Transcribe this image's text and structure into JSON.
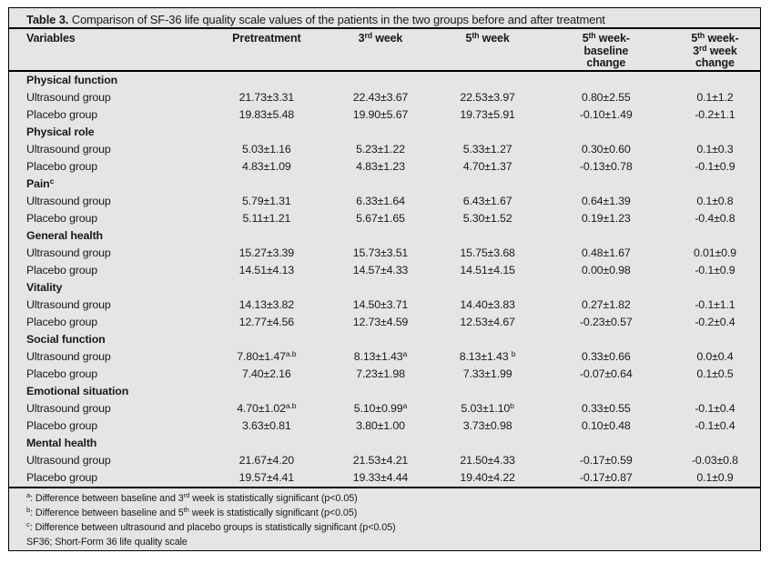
{
  "colors": {
    "page_background": "#ffffff",
    "table_background": "#e5e5e5",
    "rule_and_border": "#000000",
    "text": "#1a1a1a"
  },
  "title": {
    "label": "Table 3.",
    "caption": " Comparison of SF-36 life quality scale values of the patients in the two groups before and after treatment"
  },
  "table": {
    "headers": [
      {
        "lines": [
          "Variables"
        ],
        "align": "left"
      },
      {
        "lines": [
          "Pretreatment"
        ]
      },
      {
        "lines": [
          "3^{rd} week"
        ]
      },
      {
        "lines": [
          "5^{th} week"
        ]
      },
      {
        "lines": [
          "5^{th} week-",
          "baseline",
          "change"
        ]
      },
      {
        "lines": [
          "5^{th} week-",
          "3^{rd} week",
          "change"
        ]
      }
    ],
    "rows": [
      {
        "type": "section",
        "label": "Physical function"
      },
      {
        "type": "data",
        "label": "Ultrasound group",
        "values": [
          "21.73±3.31",
          "22.43±3.67",
          "22.53±3.97",
          "0.80±2.55",
          "0.1±1.2"
        ]
      },
      {
        "type": "data",
        "label": "Placebo group",
        "values": [
          "19.83±5.48",
          "19.90±5.67",
          "19.73±5.91",
          "-0.10±1.49",
          "-0.2±1.1"
        ]
      },
      {
        "type": "section",
        "label": "Physical role"
      },
      {
        "type": "data",
        "label": "Ultrasound group",
        "values": [
          "5.03±1.16",
          "5.23±1.22",
          "5.33±1.27",
          "0.30±0.60",
          "0.1±0.3"
        ]
      },
      {
        "type": "data",
        "label": "Placebo group",
        "values": [
          "4.83±1.09",
          "4.83±1.23",
          "4.70±1.37",
          "-0.13±0.78",
          "-0.1±0.9"
        ]
      },
      {
        "type": "section",
        "label": "Pain^{c}"
      },
      {
        "type": "data",
        "label": "Ultrasound group",
        "values": [
          "5.79±1.31",
          "6.33±1.64",
          "6.43±1.67",
          "0.64±1.39",
          "0.1±0.8"
        ]
      },
      {
        "type": "data",
        "label": "Placebo group",
        "values": [
          "5.11±1.21",
          "5.67±1.65",
          "5.30±1.52",
          "0.19±1.23",
          "-0.4±0.8"
        ]
      },
      {
        "type": "section",
        "label": "General health"
      },
      {
        "type": "data",
        "label": "Ultrasound group",
        "values": [
          "15.27±3.39",
          "15.73±3.51",
          "15.75±3.68",
          "0.48±1.67",
          "0.01±0.9"
        ]
      },
      {
        "type": "data",
        "label": "Placebo group",
        "values": [
          "14.51±4.13",
          "14.57±4.33",
          "14.51±4.15",
          "0.00±0.98",
          "-0.1±0.9"
        ]
      },
      {
        "type": "section",
        "label": "Vitality"
      },
      {
        "type": "data",
        "label": "Ultrasound group",
        "values": [
          "14.13±3.82",
          "14.50±3.71",
          "14.40±3.83",
          "0.27±1.82",
          "-0.1±1.1"
        ]
      },
      {
        "type": "data",
        "label": "Placebo group",
        "values": [
          "12.77±4.56",
          "12.73±4.59",
          "12.53±4.67",
          "-0.23±0.57",
          "-0.2±0.4"
        ]
      },
      {
        "type": "section",
        "label": "Social function"
      },
      {
        "type": "data",
        "label": "Ultrasound group",
        "values": [
          "7.80±1.47^{a.b}",
          "8.13±1.43^{a}",
          "8.13±1.43 ^{b}",
          "0.33±0.66",
          "0.0±0.4"
        ]
      },
      {
        "type": "data",
        "label": "Placebo group",
        "values": [
          "7.40±2.16",
          "7.23±1.98",
          "7.33±1.99",
          "-0.07±0.64",
          "0.1±0.5"
        ]
      },
      {
        "type": "section",
        "label": "Emotional situation"
      },
      {
        "type": "data",
        "label": "Ultrasound group",
        "values": [
          "4.70±1.02^{a.b}",
          "5.10±0.99^{a}",
          "5.03±1.10^{b}",
          "0.33±0.55",
          "-0.1±0.4"
        ]
      },
      {
        "type": "data",
        "label": "Placebo group",
        "values": [
          "3.63±0.81",
          "3.80±1.00",
          "3.73±0.98",
          "0.10±0.48",
          "-0.1±0.4"
        ]
      },
      {
        "type": "section",
        "label": "Mental health"
      },
      {
        "type": "data",
        "label": "Ultrasound group",
        "values": [
          "21.67±4.20",
          "21.53±4.21",
          "21.50±4.33",
          "-0.17±0.59",
          "-0.03±0.8"
        ]
      },
      {
        "type": "data",
        "label": "Placebo group",
        "values": [
          "19.57±4.41",
          "19.33±4.44",
          "19.40±4.22",
          "-0.17±0.87",
          "0.1±0.9"
        ]
      }
    ]
  },
  "footnotes": [
    "^{a}: Difference between baseline and 3^{rd} week is statistically significant (p<0.05)",
    "^{b}: Difference between baseline and 5^{th} week is statistically significant (p<0.05)",
    "^{c}: Difference between ultrasound and placebo groups is statistically significant (p<0.05)",
    "SF36; Short-Form 36 life quality scale"
  ]
}
